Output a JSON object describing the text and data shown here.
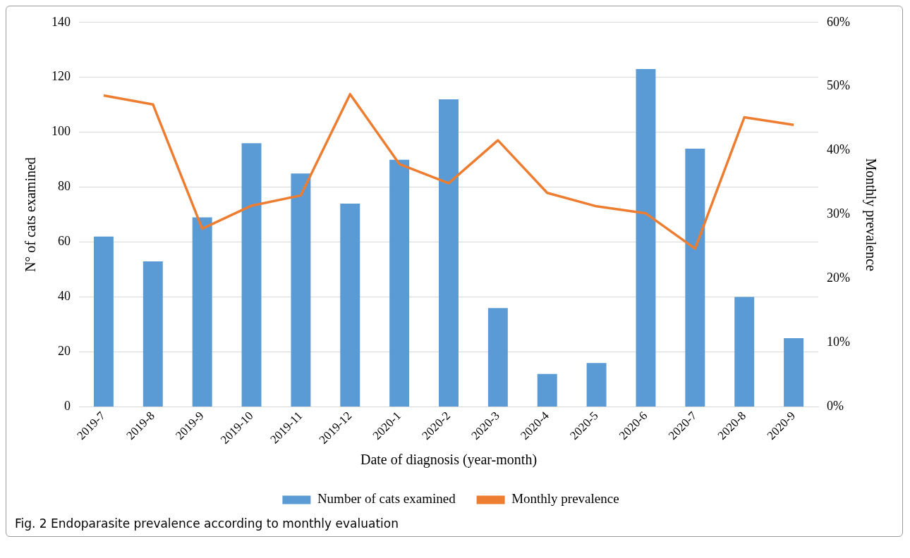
{
  "chart_data": {
    "type": "bar",
    "categories": [
      "2019-7",
      "2019-8",
      "2019-9",
      "2019-10",
      "2019-11",
      "2019-12",
      "2020-1",
      "2020-2",
      "2020-3",
      "2020-4",
      "2020-5",
      "2020-6",
      "2020-7",
      "2020-8",
      "2020-9"
    ],
    "series": [
      {
        "name": "Number of cats examined",
        "color": "#5b9bd5",
        "values": [
          62,
          53,
          69,
          96,
          85,
          74,
          90,
          112,
          36,
          12,
          16,
          123,
          94,
          40,
          25
        ]
      },
      {
        "name": "Monthly prevalence",
        "type": "line",
        "axis": "y2",
        "color": "#ed7d31",
        "values": [
          48.6,
          47.2,
          27.8,
          31.4,
          33.0,
          48.8,
          37.9,
          34.9,
          41.6,
          33.4,
          31.3,
          30.2,
          24.7,
          45.2,
          44.0
        ]
      }
    ],
    "xlabel": "Date of diagnosis (year-month)",
    "ylabel": "N° of cats examined",
    "y2label": "Monthly prevalence",
    "ylim": [
      0,
      140
    ],
    "yticks": [
      0,
      20,
      40,
      60,
      80,
      100,
      120,
      140
    ],
    "y2lim": [
      0,
      60
    ],
    "y2ticks": [
      {
        "value": 0,
        "label": "0%"
      },
      {
        "value": 10,
        "label": "10%"
      },
      {
        "value": 20,
        "label": "20%"
      },
      {
        "value": 30,
        "label": "30%"
      },
      {
        "value": 40,
        "label": "40%"
      },
      {
        "value": 50,
        "label": "50%"
      },
      {
        "value": 60,
        "label": "60%"
      }
    ],
    "grid": "y",
    "legend": "bottom",
    "marker": "none",
    "line_style": "solid",
    "annotations": [
      "Fig. 2  Endoparasite prevalence according to monthly evaluation"
    ]
  }
}
